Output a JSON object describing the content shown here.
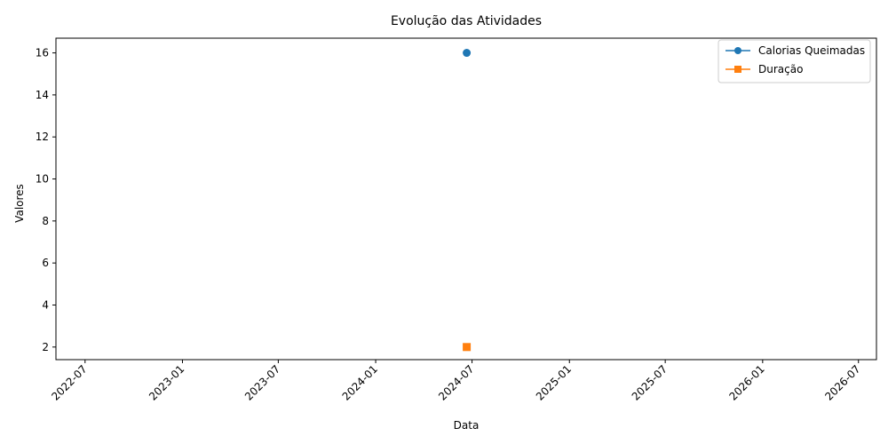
{
  "chart_data": {
    "type": "line",
    "title": "Evolução das Atividades",
    "xlabel": "Data",
    "ylabel": "Valores",
    "x_axis_kind": "date",
    "xlim": [
      "2022-05-07",
      "2026-08-04"
    ],
    "ylim": [
      1.4,
      16.7
    ],
    "x_ticks": [
      "2022-07",
      "2023-01",
      "2023-07",
      "2024-01",
      "2024-07",
      "2025-01",
      "2025-07",
      "2026-01",
      "2026-07"
    ],
    "y_ticks": [
      2,
      4,
      6,
      8,
      10,
      12,
      14,
      16
    ],
    "x_tick_rotation": 45,
    "grid": false,
    "legend_position": "top-right",
    "series": [
      {
        "name": "Calorias Queimadas",
        "color": "#1f77b4",
        "marker": "circle",
        "points": [
          {
            "x": "2024-06-21",
            "y": 16
          }
        ]
      },
      {
        "name": "Duração",
        "color": "#ff7f0e",
        "marker": "square",
        "points": [
          {
            "x": "2024-06-21",
            "y": 2
          }
        ]
      }
    ]
  }
}
